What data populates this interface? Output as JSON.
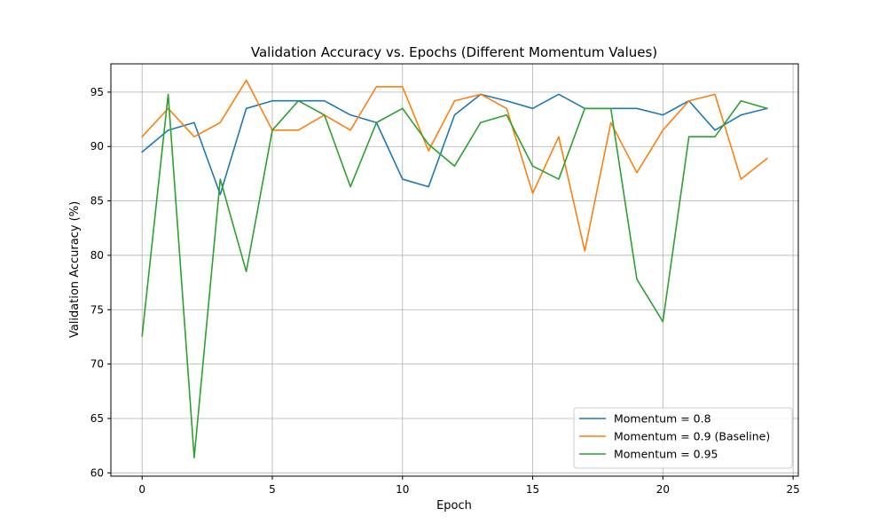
{
  "chart_data": {
    "type": "line",
    "title": "Validation Accuracy vs. Epochs (Different Momentum Values)",
    "xlabel": "Epoch",
    "ylabel": "Validation Accuracy (%)",
    "xlim": [
      -1.2,
      25.2
    ],
    "ylim": [
      59.7,
      97.6
    ],
    "xticks": [
      0,
      5,
      10,
      15,
      20,
      25
    ],
    "yticks": [
      60,
      65,
      70,
      75,
      80,
      85,
      90,
      95
    ],
    "grid": true,
    "legend_position": "lower-right",
    "x": [
      0,
      1,
      2,
      3,
      4,
      5,
      6,
      7,
      8,
      9,
      10,
      11,
      12,
      13,
      14,
      15,
      16,
      17,
      18,
      19,
      20,
      21,
      22,
      23,
      24
    ],
    "series": [
      {
        "name": "Momentum = 0.8",
        "color": "#1f77b4",
        "values": [
          89.5,
          91.5,
          92.2,
          85.6,
          93.5,
          94.2,
          94.2,
          94.2,
          92.9,
          92.2,
          87.0,
          86.3,
          92.9,
          94.8,
          94.2,
          93.5,
          94.8,
          93.5,
          93.5,
          93.5,
          92.9,
          94.2,
          91.5,
          92.9,
          93.5
        ]
      },
      {
        "name": "Momentum = 0.9 (Baseline)",
        "color": "#ff7f0e",
        "values": [
          90.9,
          93.5,
          90.9,
          92.2,
          96.1,
          91.5,
          91.5,
          92.9,
          91.5,
          95.5,
          95.5,
          89.6,
          94.2,
          94.8,
          93.5,
          85.7,
          90.9,
          80.4,
          92.2,
          87.6,
          91.5,
          94.2,
          94.8,
          87.0,
          88.9
        ]
      },
      {
        "name": "Momentum = 0.95",
        "color": "#2ca02c",
        "values": [
          72.6,
          94.8,
          61.4,
          87.0,
          78.5,
          91.5,
          94.2,
          92.9,
          86.3,
          92.2,
          93.5,
          90.2,
          88.2,
          92.2,
          92.9,
          88.2,
          87.0,
          93.5,
          93.5,
          77.8,
          73.9,
          90.9,
          90.9,
          94.2,
          93.5
        ]
      }
    ]
  }
}
